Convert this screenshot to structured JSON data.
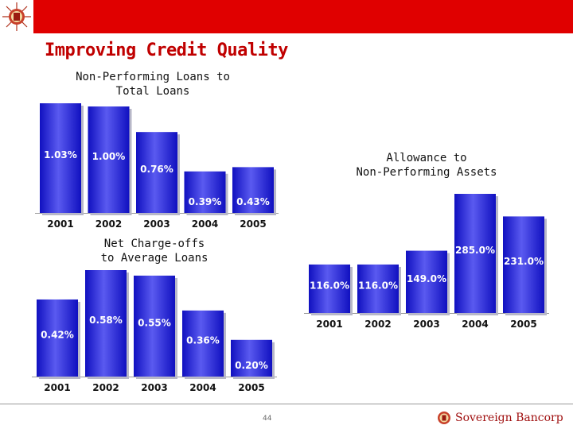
{
  "header": {
    "title": "Improving Credit Quality"
  },
  "footer": {
    "page_number": "44",
    "brand_name": "Sovereign Bancorp"
  },
  "colors": {
    "bar_top": "#5a5af0",
    "bar_bottom": "#1010c0",
    "topbar": "#e00000",
    "title": "#c00000"
  },
  "chart_data": [
    {
      "type": "bar",
      "title": "Non-Performing Loans to Total Loans",
      "title_lines": [
        "Non-Performing Loans to",
        "Total Loans"
      ],
      "categories": [
        "2001",
        "2002",
        "2003",
        "2004",
        "2005"
      ],
      "values": [
        1.03,
        1.0,
        0.76,
        0.39,
        0.43
      ],
      "value_labels": [
        "1.03%",
        "1.00%",
        "0.76%",
        "0.39%",
        "0.43%"
      ],
      "ylim": [
        0,
        1.03
      ]
    },
    {
      "type": "bar",
      "title": "Allowance to Non-Performing Assets",
      "title_lines": [
        "Allowance to",
        "Non-Performing Assets"
      ],
      "categories": [
        "2001",
        "2002",
        "2003",
        "2004",
        "2005"
      ],
      "values": [
        116.0,
        116.0,
        149.0,
        285.0,
        231.0
      ],
      "value_labels": [
        "116.0%",
        "116.0%",
        "149.0%",
        "285.0%",
        "231.0%"
      ],
      "ylim": [
        0,
        285
      ]
    },
    {
      "type": "bar",
      "title": "Net Charge-offs to Average Loans",
      "title_lines": [
        "Net Charge-offs",
        "to Average Loans"
      ],
      "categories": [
        "2001",
        "2002",
        "2003",
        "2004",
        "2005"
      ],
      "values": [
        0.42,
        0.58,
        0.55,
        0.36,
        0.2
      ],
      "value_labels": [
        "0.42%",
        "0.58%",
        "0.55%",
        "0.36%",
        "0.20%"
      ],
      "ylim": [
        0,
        0.58
      ]
    }
  ]
}
